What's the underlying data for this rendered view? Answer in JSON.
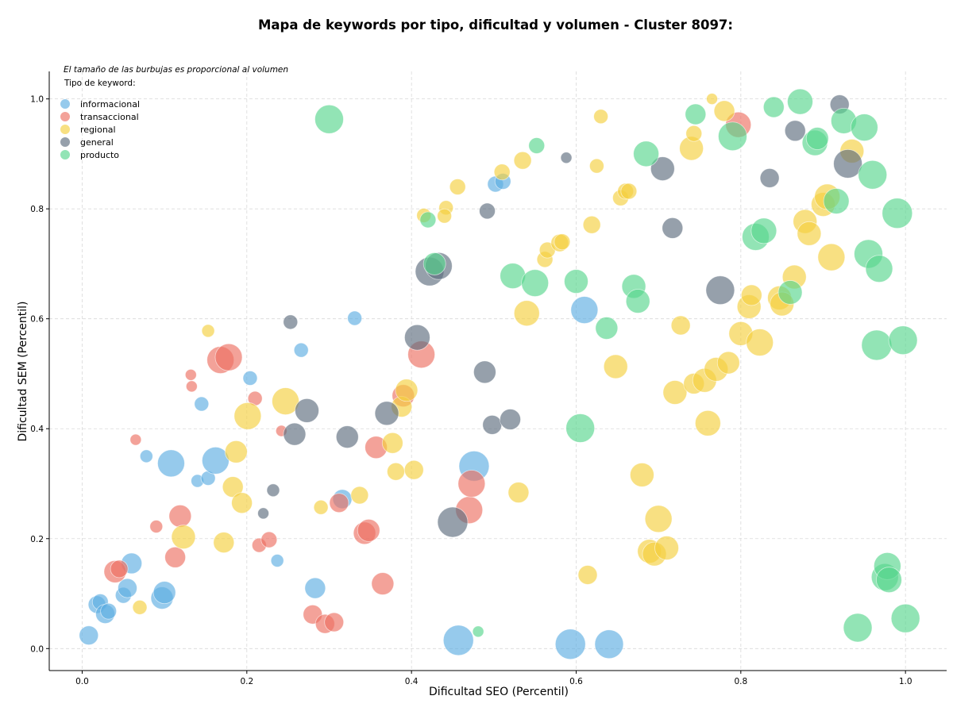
{
  "chart_data": {
    "type": "scatter",
    "title": "Mapa de keywords por tipo, dificultad y volumen - Cluster 8097:",
    "xlabel": "Dificultad SEO (Percentil)",
    "ylabel": "Dificultad SEM (Percentil)",
    "xlim": [
      -0.04,
      1.05
    ],
    "ylim": [
      -0.04,
      1.05
    ],
    "xticks": [
      0.0,
      0.2,
      0.4,
      0.6,
      0.8,
      1.0
    ],
    "yticks": [
      0.0,
      0.2,
      0.4,
      0.6,
      0.8,
      1.0
    ],
    "xtick_labels": [
      "0.0",
      "0.2",
      "0.4",
      "0.6",
      "0.8",
      "1.0"
    ],
    "ytick_labels": [
      "0.0",
      "0.2",
      "0.4",
      "0.6",
      "0.8",
      "1.0"
    ],
    "grid": true,
    "size_note": "El tamaño de las burbujas es proporcional al volumen",
    "legend": {
      "title": "Tipo de keyword:",
      "placement": "top-left"
    },
    "series": [
      {
        "name": "informacional",
        "color": "#5DADE2",
        "points": [
          {
            "x": 0.008,
            "y": 0.024,
            "s": 12
          },
          {
            "x": 0.018,
            "y": 0.08,
            "s": 11
          },
          {
            "x": 0.022,
            "y": 0.085,
            "s": 10
          },
          {
            "x": 0.028,
            "y": 0.063,
            "s": 12
          },
          {
            "x": 0.032,
            "y": 0.068,
            "s": 10
          },
          {
            "x": 0.05,
            "y": 0.097,
            "s": 10
          },
          {
            "x": 0.055,
            "y": 0.11,
            "s": 12
          },
          {
            "x": 0.06,
            "y": 0.155,
            "s": 13
          },
          {
            "x": 0.078,
            "y": 0.35,
            "s": 8
          },
          {
            "x": 0.097,
            "y": 0.092,
            "s": 14
          },
          {
            "x": 0.1,
            "y": 0.102,
            "s": 14
          },
          {
            "x": 0.108,
            "y": 0.337,
            "s": 17
          },
          {
            "x": 0.14,
            "y": 0.305,
            "s": 8
          },
          {
            "x": 0.145,
            "y": 0.445,
            "s": 9
          },
          {
            "x": 0.153,
            "y": 0.31,
            "s": 9
          },
          {
            "x": 0.162,
            "y": 0.342,
            "s": 17
          },
          {
            "x": 0.204,
            "y": 0.492,
            "s": 9
          },
          {
            "x": 0.237,
            "y": 0.16,
            "s": 8
          },
          {
            "x": 0.266,
            "y": 0.543,
            "s": 9
          },
          {
            "x": 0.283,
            "y": 0.11,
            "s": 13
          },
          {
            "x": 0.316,
            "y": 0.272,
            "s": 12
          },
          {
            "x": 0.331,
            "y": 0.601,
            "s": 9
          },
          {
            "x": 0.457,
            "y": 0.015,
            "s": 19
          },
          {
            "x": 0.476,
            "y": 0.332,
            "s": 19
          },
          {
            "x": 0.502,
            "y": 0.845,
            "s": 10
          },
          {
            "x": 0.511,
            "y": 0.85,
            "s": 10
          },
          {
            "x": 0.593,
            "y": 0.008,
            "s": 19
          },
          {
            "x": 0.61,
            "y": 0.616,
            "s": 17
          },
          {
            "x": 0.64,
            "y": 0.008,
            "s": 18
          }
        ]
      },
      {
        "name": "transaccional",
        "color": "#EC7063",
        "points": [
          {
            "x": 0.04,
            "y": 0.14,
            "s": 14
          },
          {
            "x": 0.045,
            "y": 0.145,
            "s": 11
          },
          {
            "x": 0.065,
            "y": 0.38,
            "s": 7
          },
          {
            "x": 0.09,
            "y": 0.222,
            "s": 8
          },
          {
            "x": 0.113,
            "y": 0.166,
            "s": 13
          },
          {
            "x": 0.119,
            "y": 0.241,
            "s": 14
          },
          {
            "x": 0.132,
            "y": 0.498,
            "s": 7
          },
          {
            "x": 0.133,
            "y": 0.477,
            "s": 7
          },
          {
            "x": 0.168,
            "y": 0.525,
            "s": 17
          },
          {
            "x": 0.178,
            "y": 0.53,
            "s": 17
          },
          {
            "x": 0.21,
            "y": 0.455,
            "s": 9
          },
          {
            "x": 0.215,
            "y": 0.188,
            "s": 9
          },
          {
            "x": 0.227,
            "y": 0.198,
            "s": 10
          },
          {
            "x": 0.242,
            "y": 0.396,
            "s": 7
          },
          {
            "x": 0.28,
            "y": 0.062,
            "s": 12
          },
          {
            "x": 0.295,
            "y": 0.045,
            "s": 12
          },
          {
            "x": 0.306,
            "y": 0.048,
            "s": 12
          },
          {
            "x": 0.312,
            "y": 0.265,
            "s": 12
          },
          {
            "x": 0.343,
            "y": 0.21,
            "s": 14
          },
          {
            "x": 0.348,
            "y": 0.215,
            "s": 14
          },
          {
            "x": 0.357,
            "y": 0.366,
            "s": 14
          },
          {
            "x": 0.365,
            "y": 0.118,
            "s": 14
          },
          {
            "x": 0.39,
            "y": 0.46,
            "s": 14
          },
          {
            "x": 0.412,
            "y": 0.535,
            "s": 17
          },
          {
            "x": 0.47,
            "y": 0.252,
            "s": 17
          },
          {
            "x": 0.473,
            "y": 0.3,
            "s": 17
          },
          {
            "x": 0.797,
            "y": 0.953,
            "s": 16
          }
        ]
      },
      {
        "name": "regional",
        "color": "#F4D03F",
        "points": [
          {
            "x": 0.07,
            "y": 0.075,
            "s": 9
          },
          {
            "x": 0.123,
            "y": 0.203,
            "s": 15
          },
          {
            "x": 0.153,
            "y": 0.578,
            "s": 8
          },
          {
            "x": 0.172,
            "y": 0.193,
            "s": 13
          },
          {
            "x": 0.183,
            "y": 0.294,
            "s": 13
          },
          {
            "x": 0.187,
            "y": 0.358,
            "s": 14
          },
          {
            "x": 0.194,
            "y": 0.265,
            "s": 13
          },
          {
            "x": 0.201,
            "y": 0.423,
            "s": 17
          },
          {
            "x": 0.247,
            "y": 0.45,
            "s": 17
          },
          {
            "x": 0.29,
            "y": 0.257,
            "s": 9
          },
          {
            "x": 0.337,
            "y": 0.279,
            "s": 11
          },
          {
            "x": 0.377,
            "y": 0.374,
            "s": 13
          },
          {
            "x": 0.381,
            "y": 0.322,
            "s": 11
          },
          {
            "x": 0.388,
            "y": 0.44,
            "s": 13
          },
          {
            "x": 0.394,
            "y": 0.47,
            "s": 14
          },
          {
            "x": 0.403,
            "y": 0.325,
            "s": 12
          },
          {
            "x": 0.415,
            "y": 0.788,
            "s": 9
          },
          {
            "x": 0.442,
            "y": 0.802,
            "s": 9
          },
          {
            "x": 0.44,
            "y": 0.787,
            "s": 9
          },
          {
            "x": 0.456,
            "y": 0.84,
            "s": 10
          },
          {
            "x": 0.51,
            "y": 0.867,
            "s": 10
          },
          {
            "x": 0.53,
            "y": 0.284,
            "s": 13
          },
          {
            "x": 0.535,
            "y": 0.888,
            "s": 11
          },
          {
            "x": 0.54,
            "y": 0.61,
            "s": 16
          },
          {
            "x": 0.562,
            "y": 0.708,
            "s": 10
          },
          {
            "x": 0.565,
            "y": 0.725,
            "s": 10
          },
          {
            "x": 0.58,
            "y": 0.738,
            "s": 11
          },
          {
            "x": 0.583,
            "y": 0.74,
            "s": 10
          },
          {
            "x": 0.614,
            "y": 0.134,
            "s": 12
          },
          {
            "x": 0.619,
            "y": 0.771,
            "s": 11
          },
          {
            "x": 0.625,
            "y": 0.878,
            "s": 9
          },
          {
            "x": 0.63,
            "y": 0.968,
            "s": 9
          },
          {
            "x": 0.648,
            "y": 0.513,
            "s": 15
          },
          {
            "x": 0.654,
            "y": 0.82,
            "s": 10
          },
          {
            "x": 0.66,
            "y": 0.832,
            "s": 10
          },
          {
            "x": 0.664,
            "y": 0.832,
            "s": 10
          },
          {
            "x": 0.68,
            "y": 0.316,
            "s": 15
          },
          {
            "x": 0.689,
            "y": 0.177,
            "s": 15
          },
          {
            "x": 0.695,
            "y": 0.172,
            "s": 15
          },
          {
            "x": 0.7,
            "y": 0.236,
            "s": 17
          },
          {
            "x": 0.71,
            "y": 0.183,
            "s": 15
          },
          {
            "x": 0.72,
            "y": 0.466,
            "s": 15
          },
          {
            "x": 0.727,
            "y": 0.588,
            "s": 12
          },
          {
            "x": 0.74,
            "y": 0.91,
            "s": 15
          },
          {
            "x": 0.743,
            "y": 0.937,
            "s": 10
          },
          {
            "x": 0.743,
            "y": 0.482,
            "s": 13
          },
          {
            "x": 0.756,
            "y": 0.488,
            "s": 15
          },
          {
            "x": 0.76,
            "y": 0.41,
            "s": 16
          },
          {
            "x": 0.765,
            "y": 1.0,
            "s": 7
          },
          {
            "x": 0.77,
            "y": 0.508,
            "s": 15
          },
          {
            "x": 0.78,
            "y": 0.978,
            "s": 13
          },
          {
            "x": 0.785,
            "y": 0.52,
            "s": 14
          },
          {
            "x": 0.8,
            "y": 0.573,
            "s": 15
          },
          {
            "x": 0.81,
            "y": 0.622,
            "s": 15
          },
          {
            "x": 0.813,
            "y": 0.643,
            "s": 13
          },
          {
            "x": 0.823,
            "y": 0.557,
            "s": 17
          },
          {
            "x": 0.847,
            "y": 0.638,
            "s": 15
          },
          {
            "x": 0.85,
            "y": 0.627,
            "s": 15
          },
          {
            "x": 0.865,
            "y": 0.676,
            "s": 15
          },
          {
            "x": 0.878,
            "y": 0.777,
            "s": 15
          },
          {
            "x": 0.883,
            "y": 0.755,
            "s": 15
          },
          {
            "x": 0.9,
            "y": 0.808,
            "s": 15
          },
          {
            "x": 0.905,
            "y": 0.822,
            "s": 16
          },
          {
            "x": 0.91,
            "y": 0.712,
            "s": 17
          },
          {
            "x": 0.935,
            "y": 0.905,
            "s": 15
          }
        ]
      },
      {
        "name": "general",
        "color": "#5D6D7E",
        "points": [
          {
            "x": 0.22,
            "y": 0.246,
            "s": 7
          },
          {
            "x": 0.232,
            "y": 0.288,
            "s": 8
          },
          {
            "x": 0.253,
            "y": 0.594,
            "s": 9
          },
          {
            "x": 0.258,
            "y": 0.39,
            "s": 14
          },
          {
            "x": 0.273,
            "y": 0.433,
            "s": 15
          },
          {
            "x": 0.322,
            "y": 0.385,
            "s": 14
          },
          {
            "x": 0.37,
            "y": 0.428,
            "s": 15
          },
          {
            "x": 0.407,
            "y": 0.566,
            "s": 16
          },
          {
            "x": 0.422,
            "y": 0.686,
            "s": 18
          },
          {
            "x": 0.433,
            "y": 0.696,
            "s": 17
          },
          {
            "x": 0.45,
            "y": 0.23,
            "s": 19
          },
          {
            "x": 0.489,
            "y": 0.503,
            "s": 14
          },
          {
            "x": 0.492,
            "y": 0.796,
            "s": 10
          },
          {
            "x": 0.498,
            "y": 0.407,
            "s": 12
          },
          {
            "x": 0.52,
            "y": 0.417,
            "s": 13
          },
          {
            "x": 0.588,
            "y": 0.893,
            "s": 7
          },
          {
            "x": 0.705,
            "y": 0.873,
            "s": 15
          },
          {
            "x": 0.717,
            "y": 0.765,
            "s": 13
          },
          {
            "x": 0.775,
            "y": 0.652,
            "s": 18
          },
          {
            "x": 0.835,
            "y": 0.856,
            "s": 12
          },
          {
            "x": 0.866,
            "y": 0.942,
            "s": 13
          },
          {
            "x": 0.92,
            "y": 0.99,
            "s": 12
          },
          {
            "x": 0.93,
            "y": 0.882,
            "s": 18
          }
        ]
      },
      {
        "name": "producto",
        "color": "#58D68D",
        "points": [
          {
            "x": 0.3,
            "y": 0.963,
            "s": 18
          },
          {
            "x": 0.42,
            "y": 0.78,
            "s": 10
          },
          {
            "x": 0.428,
            "y": 0.7,
            "s": 14
          },
          {
            "x": 0.481,
            "y": 0.031,
            "s": 7
          },
          {
            "x": 0.523,
            "y": 0.678,
            "s": 16
          },
          {
            "x": 0.55,
            "y": 0.665,
            "s": 17
          },
          {
            "x": 0.552,
            "y": 0.915,
            "s": 10
          },
          {
            "x": 0.6,
            "y": 0.668,
            "s": 15
          },
          {
            "x": 0.605,
            "y": 0.401,
            "s": 18
          },
          {
            "x": 0.637,
            "y": 0.583,
            "s": 14
          },
          {
            "x": 0.67,
            "y": 0.659,
            "s": 15
          },
          {
            "x": 0.675,
            "y": 0.632,
            "s": 15
          },
          {
            "x": 0.685,
            "y": 0.9,
            "s": 16
          },
          {
            "x": 0.745,
            "y": 0.972,
            "s": 13
          },
          {
            "x": 0.79,
            "y": 0.932,
            "s": 18
          },
          {
            "x": 0.818,
            "y": 0.749,
            "s": 17
          },
          {
            "x": 0.828,
            "y": 0.76,
            "s": 16
          },
          {
            "x": 0.84,
            "y": 0.985,
            "s": 13
          },
          {
            "x": 0.86,
            "y": 0.648,
            "s": 15
          },
          {
            "x": 0.872,
            "y": 0.995,
            "s": 16
          },
          {
            "x": 0.89,
            "y": 0.92,
            "s": 16
          },
          {
            "x": 0.893,
            "y": 0.928,
            "s": 14
          },
          {
            "x": 0.916,
            "y": 0.814,
            "s": 16
          },
          {
            "x": 0.925,
            "y": 0.96,
            "s": 16
          },
          {
            "x": 0.942,
            "y": 0.038,
            "s": 18
          },
          {
            "x": 0.95,
            "y": 0.948,
            "s": 17
          },
          {
            "x": 0.955,
            "y": 0.718,
            "s": 18
          },
          {
            "x": 0.96,
            "y": 0.862,
            "s": 18
          },
          {
            "x": 0.965,
            "y": 0.552,
            "s": 19
          },
          {
            "x": 0.968,
            "y": 0.691,
            "s": 17
          },
          {
            "x": 0.975,
            "y": 0.13,
            "s": 17
          },
          {
            "x": 0.978,
            "y": 0.15,
            "s": 17
          },
          {
            "x": 0.98,
            "y": 0.125,
            "s": 16
          },
          {
            "x": 0.99,
            "y": 0.792,
            "s": 19
          },
          {
            "x": 0.997,
            "y": 0.561,
            "s": 18
          },
          {
            "x": 1.0,
            "y": 0.055,
            "s": 18
          }
        ]
      }
    ]
  }
}
